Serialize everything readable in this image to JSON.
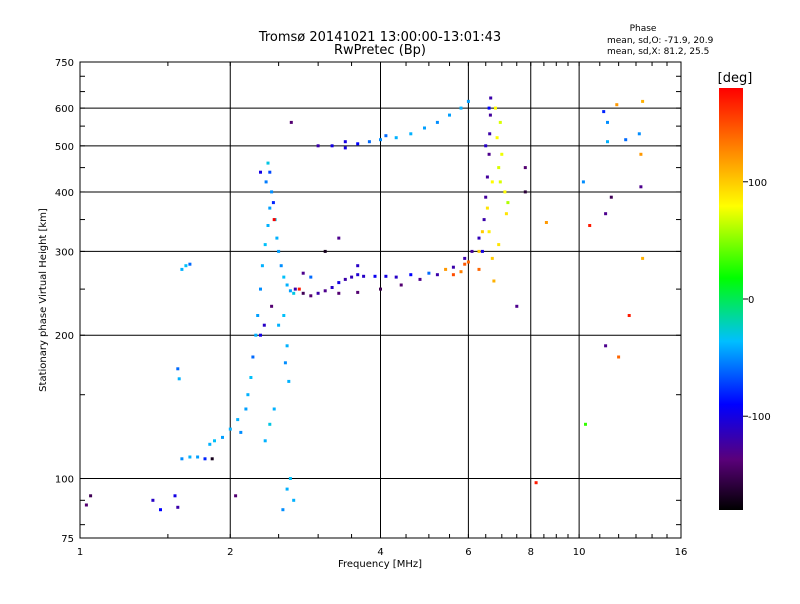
{
  "chart_data": {
    "type": "scatter",
    "title": "Tromsø 20141021 13:00:00-13:01:43",
    "subtitle": "RwPretec (Bp)",
    "xlabel": "Frequency [MHz]",
    "ylabel": "Stationary phase Virtual Height [km]",
    "x_scale": "log",
    "y_scale": "log",
    "xlim": [
      1,
      16
    ],
    "ylim": [
      75,
      750
    ],
    "x_ticks": [
      1,
      2,
      4,
      6,
      8,
      10,
      16
    ],
    "x_tick_labels": [
      "1",
      "2",
      "4",
      "6",
      "8",
      "10",
      "16"
    ],
    "y_ticks": [
      75,
      100,
      200,
      300,
      400,
      500,
      600,
      750
    ],
    "y_tick_labels": [
      "75",
      "100",
      "200",
      "300",
      "400",
      "500",
      "600",
      "750"
    ],
    "grid": true,
    "phase_stats": {
      "title": "Phase",
      "line_o": "mean, sd,O: -71.9, 20.9",
      "line_x": "mean, sd,X:  81.2, 25.5"
    },
    "colorbar": {
      "label": "[deg]",
      "range": [
        -180,
        180
      ],
      "ticks": [
        100,
        0,
        -100
      ],
      "tick_labels": [
        "100",
        "0",
        "-100"
      ]
    },
    "series": [
      {
        "points": [
          [
            1.03,
            88,
            -140
          ],
          [
            1.05,
            92,
            -150
          ],
          [
            1.4,
            90,
            -110
          ],
          [
            1.45,
            86,
            -90
          ],
          [
            1.55,
            92,
            -100
          ],
          [
            1.57,
            87,
            -120
          ],
          [
            1.6,
            275,
            -40
          ],
          [
            1.63,
            280,
            -35
          ],
          [
            1.66,
            282,
            -60
          ],
          [
            1.57,
            170,
            -60
          ],
          [
            1.58,
            162,
            -40
          ],
          [
            1.6,
            110,
            -50
          ],
          [
            1.66,
            111,
            -40
          ],
          [
            1.72,
            111,
            -45
          ],
          [
            1.78,
            110,
            -80
          ],
          [
            1.84,
            110,
            -170
          ],
          [
            1.82,
            118,
            -40
          ],
          [
            1.86,
            120,
            -35
          ],
          [
            1.93,
            122,
            -45
          ],
          [
            2.0,
            127,
            -40
          ],
          [
            2.1,
            125,
            -50
          ],
          [
            2.07,
            133,
            -40
          ],
          [
            2.15,
            140,
            -45
          ],
          [
            2.17,
            150,
            -40
          ],
          [
            2.2,
            163,
            -35
          ],
          [
            2.22,
            180,
            -60
          ],
          [
            2.25,
            200,
            -40
          ],
          [
            2.27,
            220,
            -45
          ],
          [
            2.3,
            250,
            -50
          ],
          [
            2.32,
            280,
            -40
          ],
          [
            2.35,
            310,
            -35
          ],
          [
            2.38,
            340,
            -40
          ],
          [
            2.4,
            370,
            -45
          ],
          [
            2.42,
            400,
            -50
          ],
          [
            2.4,
            440,
            -70
          ],
          [
            2.38,
            460,
            -30
          ],
          [
            2.36,
            420,
            -55
          ],
          [
            2.44,
            380,
            -80
          ],
          [
            2.46,
            350,
            -30
          ],
          [
            2.48,
            320,
            -40
          ],
          [
            2.5,
            300,
            -45
          ],
          [
            2.53,
            280,
            -50
          ],
          [
            2.56,
            265,
            -35
          ],
          [
            2.6,
            255,
            -40
          ],
          [
            2.64,
            248,
            -45
          ],
          [
            2.68,
            245,
            -30
          ],
          [
            2.3,
            200,
            -100
          ],
          [
            2.34,
            210,
            -110
          ],
          [
            2.42,
            230,
            -140
          ],
          [
            2.5,
            210,
            -40
          ],
          [
            2.56,
            220,
            -35
          ],
          [
            2.6,
            190,
            -40
          ],
          [
            2.58,
            175,
            -50
          ],
          [
            2.62,
            160,
            -40
          ],
          [
            2.45,
            140,
            -40
          ],
          [
            2.4,
            130,
            -30
          ],
          [
            2.35,
            120,
            -40
          ],
          [
            2.6,
            95,
            -40
          ],
          [
            2.64,
            100,
            -35
          ],
          [
            2.68,
            90,
            -40
          ],
          [
            2.55,
            86,
            -50
          ],
          [
            2.05,
            92,
            -140
          ],
          [
            2.3,
            440,
            -100
          ],
          [
            2.45,
            350,
            180
          ],
          [
            2.65,
            560,
            -140
          ],
          [
            2.75,
            250,
            170
          ],
          [
            3.1,
            300,
            -170
          ],
          [
            3.3,
            320,
            -130
          ],
          [
            3.6,
            280,
            -110
          ],
          [
            2.8,
            270,
            -130
          ],
          [
            2.9,
            265,
            -60
          ],
          [
            2.7,
            250,
            -120
          ],
          [
            2.8,
            245,
            -150
          ],
          [
            2.9,
            242,
            -140
          ],
          [
            3.0,
            245,
            -120
          ],
          [
            3.1,
            248,
            -130
          ],
          [
            3.2,
            252,
            -110
          ],
          [
            3.3,
            258,
            -100
          ],
          [
            3.4,
            262,
            -120
          ],
          [
            3.5,
            265,
            -115
          ],
          [
            3.6,
            268,
            -105
          ],
          [
            3.7,
            266,
            -110
          ],
          [
            3.9,
            266,
            -95
          ],
          [
            4.1,
            266,
            -100
          ],
          [
            4.3,
            265,
            -110
          ],
          [
            4.6,
            268,
            -90
          ],
          [
            3.3,
            245,
            -140
          ],
          [
            3.6,
            246,
            -140
          ],
          [
            4.0,
            250,
            -150
          ],
          [
            4.4,
            255,
            -140
          ],
          [
            4.8,
            262,
            -130
          ],
          [
            5.2,
            268,
            -120
          ],
          [
            5.6,
            278,
            -120
          ],
          [
            5.9,
            290,
            -120
          ],
          [
            6.1,
            300,
            -125
          ],
          [
            6.3,
            320,
            -115
          ],
          [
            6.45,
            350,
            -120
          ],
          [
            6.5,
            390,
            -125
          ],
          [
            6.55,
            430,
            -125
          ],
          [
            6.6,
            480,
            -130
          ],
          [
            6.62,
            530,
            -120
          ],
          [
            6.64,
            580,
            -125
          ],
          [
            6.65,
            630,
            -120
          ],
          [
            6.4,
            300,
            -100
          ],
          [
            6.5,
            500,
            -110
          ],
          [
            6.6,
            600,
            -90
          ],
          [
            3.0,
            500,
            -120
          ],
          [
            3.2,
            500,
            -100
          ],
          [
            3.4,
            495,
            -100
          ],
          [
            3.6,
            505,
            -90
          ],
          [
            3.8,
            510,
            -60
          ],
          [
            4.0,
            515,
            -50
          ],
          [
            4.3,
            520,
            -40
          ],
          [
            4.6,
            530,
            -40
          ],
          [
            4.9,
            545,
            -45
          ],
          [
            5.2,
            560,
            -50
          ],
          [
            5.5,
            580,
            -45
          ],
          [
            5.8,
            600,
            -40
          ],
          [
            6.0,
            620,
            -45
          ],
          [
            4.1,
            525,
            -60
          ],
          [
            3.4,
            510,
            -100
          ],
          [
            5.0,
            270,
            -60
          ],
          [
            5.4,
            275,
            120
          ],
          [
            5.6,
            268,
            150
          ],
          [
            5.8,
            272,
            130
          ],
          [
            6.0,
            285,
            140
          ],
          [
            6.3,
            300,
            100
          ],
          [
            6.4,
            330,
            100
          ],
          [
            6.55,
            370,
            90
          ],
          [
            6.7,
            420,
            80
          ],
          [
            6.9,
            450,
            70
          ],
          [
            6.85,
            520,
            80
          ],
          [
            6.95,
            560,
            70
          ],
          [
            6.8,
            600,
            80
          ],
          [
            7.1,
            400,
            80
          ],
          [
            7.15,
            360,
            90
          ],
          [
            6.9,
            310,
            90
          ],
          [
            6.7,
            290,
            100
          ],
          [
            6.6,
            330,
            85
          ],
          [
            7.0,
            480,
            75
          ],
          [
            6.75,
            260,
            110
          ],
          [
            7.2,
            380,
            60
          ],
          [
            6.95,
            420,
            70
          ],
          [
            6.3,
            275,
            140
          ],
          [
            5.9,
            282,
            145
          ],
          [
            7.5,
            230,
            -130
          ],
          [
            7.8,
            450,
            -140
          ],
          [
            7.8,
            400,
            -160
          ],
          [
            8.2,
            98,
            170
          ],
          [
            8.6,
            345,
            120
          ],
          [
            10.2,
            420,
            -50
          ],
          [
            10.3,
            130,
            30
          ],
          [
            10.5,
            340,
            170
          ],
          [
            11.2,
            590,
            -80
          ],
          [
            11.3,
            360,
            -130
          ],
          [
            11.4,
            560,
            -50
          ],
          [
            11.6,
            390,
            -150
          ],
          [
            11.3,
            190,
            -130
          ],
          [
            11.9,
            610,
            120
          ],
          [
            12.0,
            180,
            140
          ],
          [
            12.6,
            220,
            170
          ],
          [
            13.3,
            410,
            -130
          ],
          [
            13.2,
            530,
            -50
          ],
          [
            13.3,
            480,
            120
          ],
          [
            13.4,
            620,
            110
          ],
          [
            13.4,
            290,
            110
          ],
          [
            12.4,
            515,
            -60
          ],
          [
            11.4,
            510,
            -40
          ]
        ]
      }
    ]
  }
}
